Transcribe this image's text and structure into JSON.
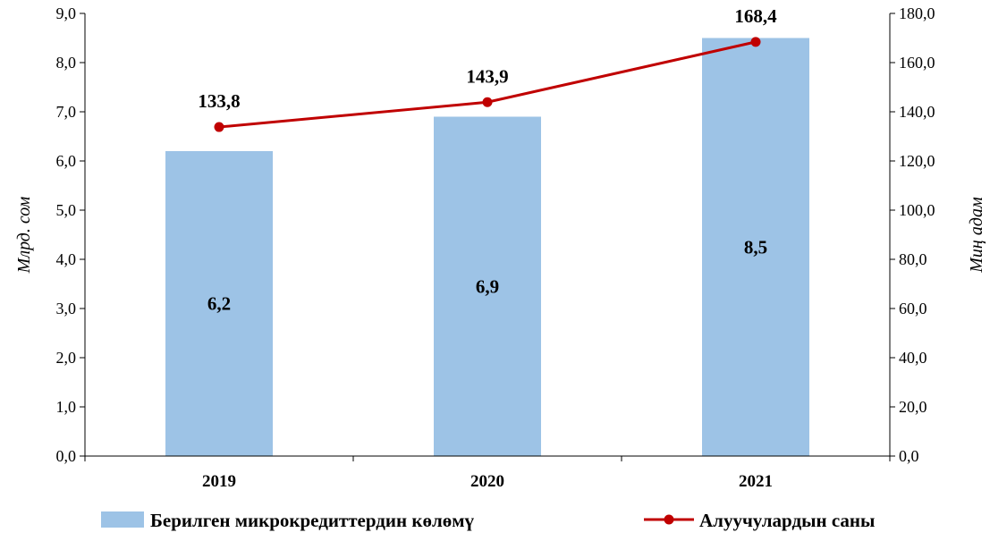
{
  "chart_data": {
    "type": "bar",
    "categories": [
      "2019",
      "2020",
      "2021"
    ],
    "series": [
      {
        "name": "Берилген микрокредиттердин  көлөмү",
        "type": "bar",
        "axis": "left",
        "values": [
          6.2,
          6.9,
          8.5
        ],
        "labels": [
          "6,2",
          "6,9",
          "8,5"
        ],
        "color": "#9DC3E6"
      },
      {
        "name": "Алуучулардын саны",
        "type": "line",
        "axis": "right",
        "values": [
          133.8,
          143.9,
          168.4
        ],
        "labels": [
          "133,8",
          "143,9",
          "168,4"
        ],
        "color": "#C00000"
      }
    ],
    "ylabel": "Млрд. сом",
    "y2label": "Миң адам",
    "ylim": [
      0,
      9
    ],
    "y2lim": [
      0,
      180
    ],
    "yticks": [
      "0,0",
      "1,0",
      "2,0",
      "3,0",
      "4,0",
      "5,0",
      "6,0",
      "7,0",
      "8,0",
      "9,0"
    ],
    "y2ticks": [
      "0,0",
      "20,0",
      "40,0",
      "60,0",
      "80,0",
      "100,0",
      "120,0",
      "140,0",
      "160,0",
      "180,0"
    ],
    "grid": false,
    "legend": "bottom"
  }
}
